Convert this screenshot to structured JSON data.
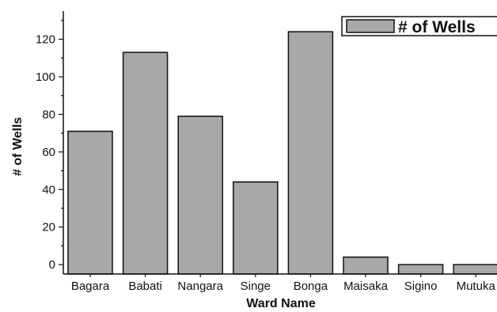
{
  "chart_data": {
    "type": "bar",
    "title": "",
    "xlabel": "Ward Name",
    "ylabel": "# of Wells",
    "categories": [
      "Bagara",
      "Babati",
      "Nangara",
      "Singe",
      "Bonga",
      "Maisaka",
      "Sigino",
      "Mutuka"
    ],
    "series": [
      {
        "name": "# of Wells",
        "values": [
          71,
          113,
          79,
          44,
          124,
          4,
          0,
          0
        ]
      }
    ],
    "ylim": [
      -5,
      135
    ],
    "yticks": [
      0,
      20,
      40,
      60,
      80,
      100,
      120
    ],
    "grid": false,
    "legend_position": "top-right",
    "colors": {
      "bar_fill": "#a8a8a8",
      "bar_stroke": "#111111",
      "axis": "#111111"
    }
  }
}
